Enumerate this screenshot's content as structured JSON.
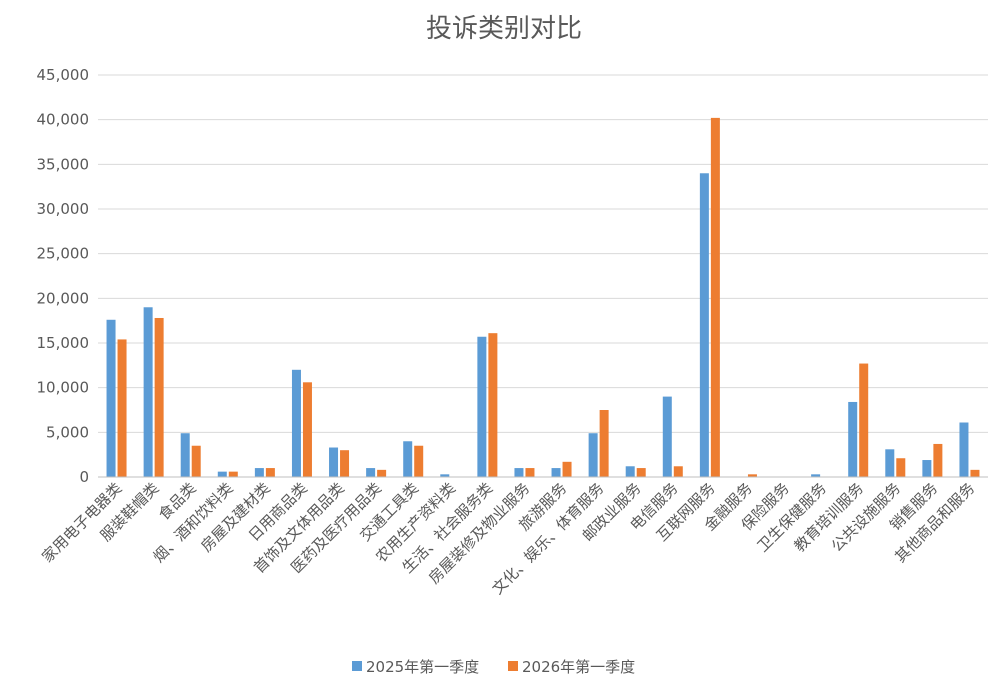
{
  "chart_data": {
    "type": "bar",
    "title": "投诉类别对比",
    "xlabel": "",
    "ylabel": "",
    "ylim": [
      0,
      45000
    ],
    "yticks": [
      "0",
      "5,000",
      "10,000",
      "15,000",
      "20,000",
      "25,000",
      "30,000",
      "35,000",
      "40,000",
      "45,000"
    ],
    "grid": true,
    "legend_position": "bottom",
    "categories": [
      "家用电子电器类",
      "服装鞋帽类",
      "食品类",
      "烟、酒和饮料类",
      "房屋及建材类",
      "日用商品类",
      "首饰及文体用品类",
      "医药及医疗用品类",
      "交通工具类",
      "农用生产资料类",
      "生活、社会服务类",
      "房屋装修及物业服务",
      "旅游服务",
      "文化、娱乐、体育服务",
      "邮政业服务",
      "电信服务",
      "互联网服务",
      "金融服务",
      "保险服务",
      "卫生保健服务",
      "教育培训服务",
      "公共设施服务",
      "销售服务",
      "其他商品和服务"
    ],
    "series": [
      {
        "name": "2025年第一季度",
        "color": "#5b9bd5",
        "values": [
          17600,
          19000,
          4900,
          600,
          1000,
          12000,
          3300,
          1000,
          4000,
          300,
          15700,
          1000,
          1000,
          4900,
          1200,
          9000,
          34000,
          0,
          0,
          300,
          8400,
          3100,
          1900,
          6100
        ]
      },
      {
        "name": "2026年第一季度",
        "color": "#ed7d31",
        "values": [
          15400,
          17800,
          3500,
          600,
          1000,
          10600,
          3000,
          800,
          3500,
          0,
          16100,
          1000,
          1700,
          7500,
          1000,
          1200,
          40200,
          300,
          0,
          0,
          12700,
          2100,
          3700,
          800
        ]
      }
    ]
  }
}
